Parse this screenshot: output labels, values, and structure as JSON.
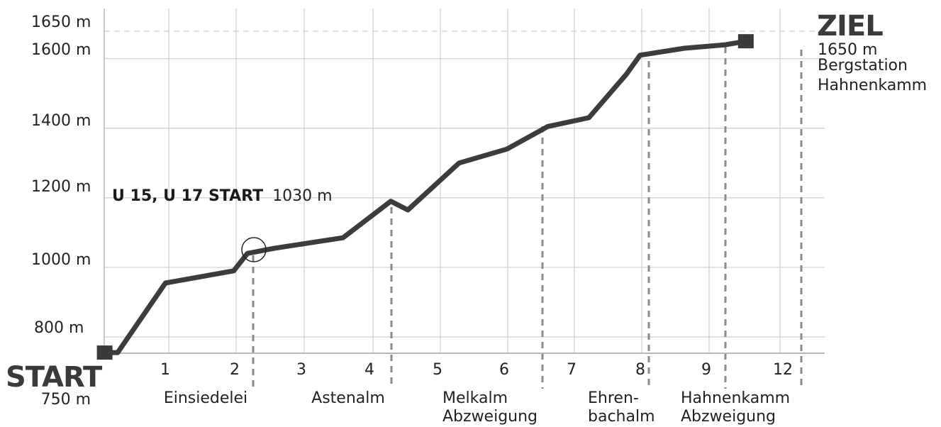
{
  "chart_data": {
    "type": "line",
    "y_tick_labels": [
      "800 m",
      "1000 m",
      "1200 m",
      "1400 m",
      "1600 m",
      "1650 m"
    ],
    "x_tick_labels": [
      "1",
      "2",
      "3",
      "4",
      "5",
      "6",
      "7",
      "8",
      "9",
      "12"
    ],
    "series": [
      {
        "points": [
          {
            "x": 0.1,
            "y": 755
          },
          {
            "x": 0.3,
            "y": 755
          },
          {
            "x": 1.0,
            "y": 955
          },
          {
            "x": 2.0,
            "y": 990
          },
          {
            "x": 2.2,
            "y": 1040
          },
          {
            "x": 2.6,
            "y": 1055
          },
          {
            "x": 3.6,
            "y": 1085
          },
          {
            "x": 4.3,
            "y": 1190
          },
          {
            "x": 4.55,
            "y": 1165
          },
          {
            "x": 5.3,
            "y": 1300
          },
          {
            "x": 6.0,
            "y": 1340
          },
          {
            "x": 6.6,
            "y": 1405
          },
          {
            "x": 7.2,
            "y": 1430
          },
          {
            "x": 7.75,
            "y": 1555
          },
          {
            "x": 7.95,
            "y": 1610
          },
          {
            "x": 8.6,
            "y": 1630
          },
          {
            "x": 9.2,
            "y": 1640
          },
          {
            "x": 9.5,
            "y": 1650
          }
        ]
      }
    ],
    "start": {
      "title": "START",
      "elevation": "750 m"
    },
    "finish": {
      "title": "ZIEL",
      "elevation": "1650 m",
      "line1": "Bergstation",
      "line2": "Hahnenkamm"
    },
    "annotation": {
      "bold": "U 15, U 17 START",
      "text": "1030 m"
    },
    "places": [
      "Einsiedelei",
      "Astenalm",
      "Melkalm",
      "Abzweigung",
      "Ehren-",
      "bachalm",
      "Hahnenkamm",
      "Abzweigung"
    ],
    "colors": {
      "line": "#3c3c3c",
      "grid": "#cfcfcf",
      "dash": "#8a8a8a",
      "marker": "#3a3a3a"
    }
  }
}
